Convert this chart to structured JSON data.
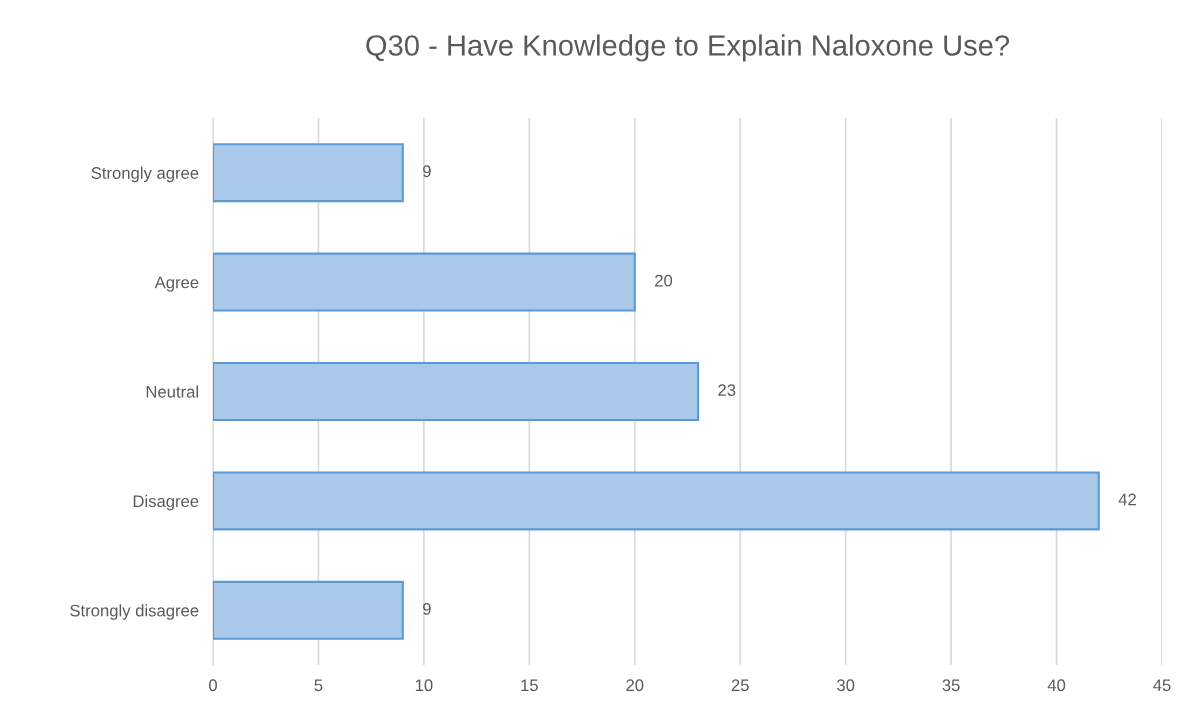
{
  "chart_data": {
    "type": "bar",
    "orientation": "horizontal",
    "title": "Q30 - Have Knowledge to Explain Naloxone Use?",
    "categories": [
      "Strongly agree",
      "Agree",
      "Neutral",
      "Disagree",
      "Strongly disagree"
    ],
    "values": [
      9,
      20,
      23,
      42,
      9
    ],
    "color": "#a9c8ea",
    "xlim": [
      0,
      45
    ],
    "xticks": [
      0,
      5,
      10,
      15,
      20,
      25,
      30,
      35,
      40,
      45
    ],
    "grid": "x",
    "data_labels": true,
    "legend": false
  }
}
